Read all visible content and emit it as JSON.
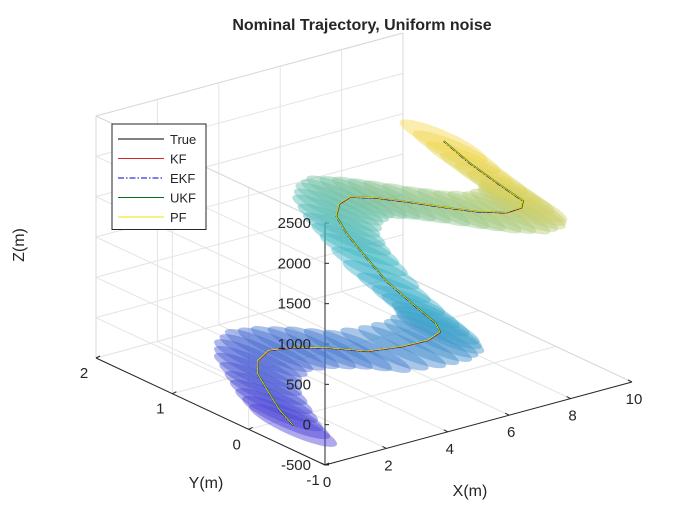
{
  "chart_data": {
    "type": "line",
    "projection": "3d",
    "title": "Nominal Trajectory, Uniform noise",
    "xlabel": "X(m)",
    "ylabel": "Y(m)",
    "zlabel": "Z(m)",
    "xlim": [
      0,
      10
    ],
    "ylim": [
      -1,
      2
    ],
    "zlim": [
      -500,
      2500
    ],
    "xticks": [
      "0",
      "2",
      "4",
      "6",
      "8",
      "10"
    ],
    "yticks": [
      "-1",
      "0",
      "1",
      "2"
    ],
    "zticks": [
      "-500",
      "0",
      "500",
      "1000",
      "1500",
      "2000",
      "2500"
    ],
    "grid": true,
    "legend_position": "top-left",
    "legend": [
      {
        "name": "True",
        "color": "#000000",
        "style": "solid"
      },
      {
        "name": "KF",
        "color": "#d62728",
        "style": "solid"
      },
      {
        "name": "EKF",
        "color": "#0000cc",
        "style": "dashdot"
      },
      {
        "name": "UKF",
        "color": "#0a6b1e",
        "style": "solid"
      },
      {
        "name": "PF",
        "color": "#f2e200",
        "style": "solid"
      }
    ],
    "covariance_ellipses": {
      "colormap": "parula",
      "color_start": "#4b3fd6",
      "color_mid": "#38b6c8",
      "color_end": "#f6d64a",
      "opacity": 0.45
    },
    "trajectory": {
      "x": [
        0.2,
        0.5,
        0.9,
        1.3,
        1.8,
        2.4,
        3.0,
        3.6,
        4.1,
        4.5,
        4.6,
        4.5,
        4.1,
        3.7,
        3.5,
        3.5,
        3.7,
        4.1,
        4.7,
        5.3,
        5.9,
        6.4,
        6.9,
        7.2,
        7.4,
        7.4,
        7.2,
        6.9,
        6.7,
        6.6
      ],
      "y": [
        -0.5,
        -0.2,
        0.1,
        0.4,
        0.6,
        0.7,
        0.6,
        0.4,
        0.1,
        -0.2,
        -0.5,
        -0.7,
        -0.8,
        -0.7,
        -0.4,
        -0.1,
        0.2,
        0.5,
        0.7,
        0.8,
        0.7,
        0.5,
        0.2,
        -0.1,
        -0.4,
        -0.6,
        -0.7,
        -0.5,
        -0.2,
        0.1
      ],
      "z": [
        -250,
        -220,
        -180,
        -130,
        -100,
        -80,
        -60,
        -40,
        0,
        150,
        350,
        550,
        750,
        950,
        1150,
        1350,
        1450,
        1500,
        1500,
        1480,
        1450,
        1440,
        1450,
        1500,
        1600,
        1750,
        1900,
        2050,
        2200,
        2350
      ]
    }
  }
}
